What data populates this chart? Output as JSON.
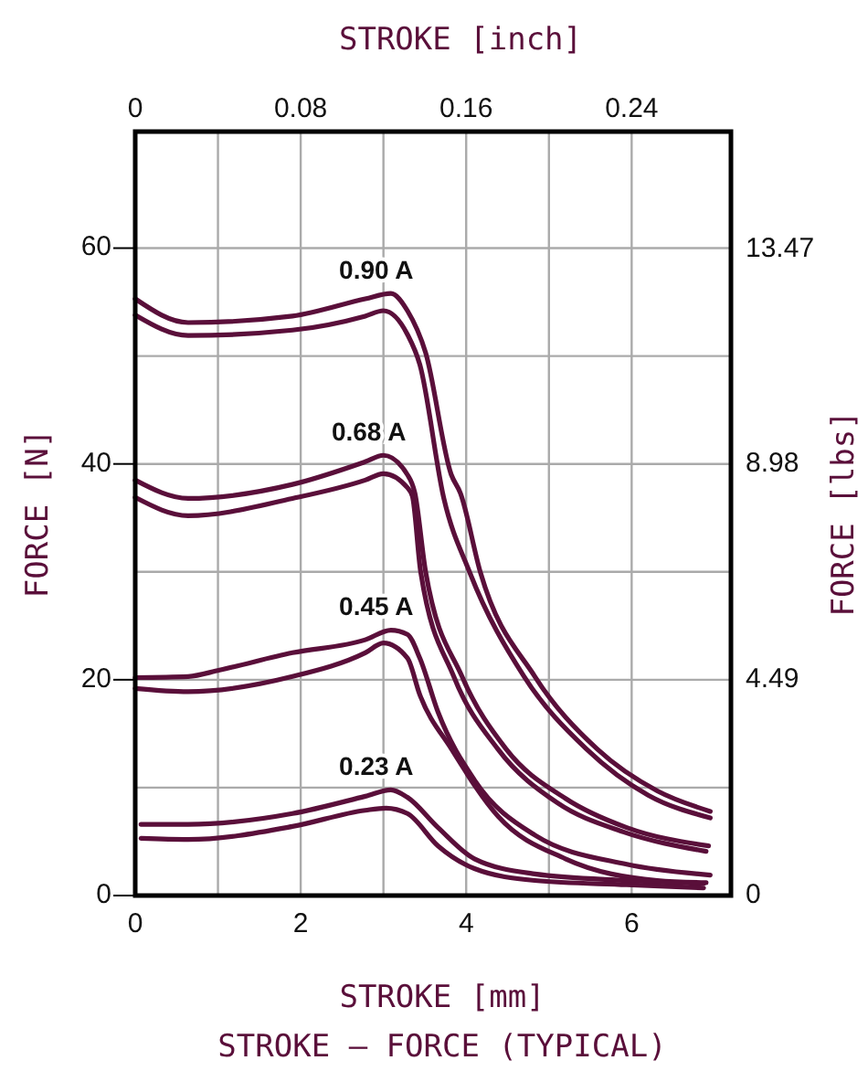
{
  "chart_data": {
    "type": "line",
    "title": "STROKE – FORCE (TYPICAL)",
    "xlabel": "STROKE [mm]",
    "x2label": "STROKE [inch]",
    "ylabel": "FORCE [N]",
    "y2label": "FORCE [lbs]",
    "xlim": [
      0,
      7.2
    ],
    "xticks": [
      0,
      {
        "value": 1,
        "label": null
      },
      2,
      {
        "value": 3,
        "label": null
      },
      4,
      {
        "value": 5,
        "label": null
      },
      6
    ],
    "x2lim": [
      0,
      0.288
    ],
    "x2ticks": [
      0,
      0.08,
      0.16,
      0.24
    ],
    "ylim": [
      0,
      70.8
    ],
    "yticks": [
      0,
      {
        "value": 10,
        "label": null
      },
      20,
      {
        "value": 30,
        "label": null
      },
      40,
      {
        "value": 50,
        "label": null
      },
      60
    ],
    "y2lim": [
      0,
      15.92
    ],
    "y2ticks": [
      0,
      4.49,
      8.98,
      13.47
    ],
    "grid": true,
    "marker": "none",
    "line_style": "solid",
    "series": [
      {
        "name": "0.90 A",
        "color": "#5a0f3a",
        "x": [
          0,
          0.64,
          1.9,
          2.78,
          3.09,
          3.29,
          3.51,
          3.82,
          3.93,
          4.17,
          4.83,
          5.58,
          6.31,
          6.95
        ],
        "values": [
          55.3,
          53.1,
          53.7,
          55.3,
          55.8,
          54.2,
          50.3,
          39,
          37.3,
          30,
          20.3,
          13.6,
          9.7,
          7.8
        ]
      },
      {
        "color": "#5a0f3a",
        "x": [
          0,
          0.64,
          1.9,
          2.78,
          3.0,
          3.29,
          3.44,
          3.73,
          4.04,
          4.7,
          5.45,
          6.2,
          6.95
        ],
        "values": [
          53.8,
          51.9,
          52.4,
          53.7,
          54.2,
          52,
          49.2,
          36.8,
          30,
          20.3,
          13.6,
          9.3,
          7.2
        ]
      },
      {
        "name": "0.68 A",
        "color": "#5a0f3a",
        "x": [
          0,
          0.64,
          1.9,
          2.78,
          3.0,
          3.29,
          3.38,
          3.51,
          3.95,
          4.48,
          5.2,
          5.94,
          6.93
        ],
        "values": [
          38.5,
          36.8,
          38.1,
          40.2,
          40.8,
          39,
          37.3,
          30,
          20.3,
          13.6,
          9,
          6.3,
          4.6
        ]
      },
      {
        "color": "#5a0f3a",
        "x": [
          0,
          0.64,
          1.9,
          2.78,
          3.0,
          3.29,
          3.35,
          3.45,
          3.85,
          4.38,
          5.1,
          5.9,
          6.9
        ],
        "values": [
          36.9,
          35.2,
          36.8,
          38.5,
          39.1,
          37.8,
          37,
          30,
          20.3,
          13.6,
          8.6,
          5.9,
          4.1
        ]
      },
      {
        "name": "0.45 A",
        "color": "#5a0f3a",
        "x": [
          0,
          0.64,
          1.02,
          1.9,
          2.78,
          3.09,
          3.29,
          3.44,
          3.66,
          4.1,
          4.83,
          5.94,
          6.95
        ],
        "values": [
          20.2,
          20.3,
          20.9,
          22.5,
          23.7,
          24.6,
          24.2,
          22,
          17,
          10.7,
          5.6,
          2.9,
          1.9
        ]
      },
      {
        "color": "#5a0f3a",
        "x": [
          0,
          0.64,
          1.9,
          2.78,
          3.0,
          3.29,
          3.44,
          3.82,
          4.39,
          5.2,
          6.31,
          6.9
        ],
        "values": [
          19.2,
          18.9,
          20.3,
          22.5,
          23.4,
          22,
          18.6,
          13.6,
          7.3,
          3.4,
          1.4,
          1.2
        ]
      },
      {
        "name": "0.23 A",
        "color": "#5a0f3a",
        "x": [
          0.07,
          0.64,
          1.9,
          2.78,
          3.09,
          3.29,
          3.66,
          4.1,
          4.83,
          5.94,
          6.87
        ],
        "values": [
          6.6,
          6.6,
          7.6,
          9.2,
          9.8,
          9.1,
          6.3,
          3.4,
          2,
          1.4,
          1.1
        ]
      },
      {
        "color": "#5a0f3a",
        "x": [
          0.07,
          0.64,
          1.9,
          2.78,
          3.03,
          3.29,
          3.66,
          4.1,
          4.83,
          5.94,
          6.87
        ],
        "values": [
          5.3,
          5.2,
          6.4,
          7.9,
          8.1,
          7.6,
          4.6,
          2.5,
          1.4,
          1,
          0.7
        ]
      }
    ]
  }
}
